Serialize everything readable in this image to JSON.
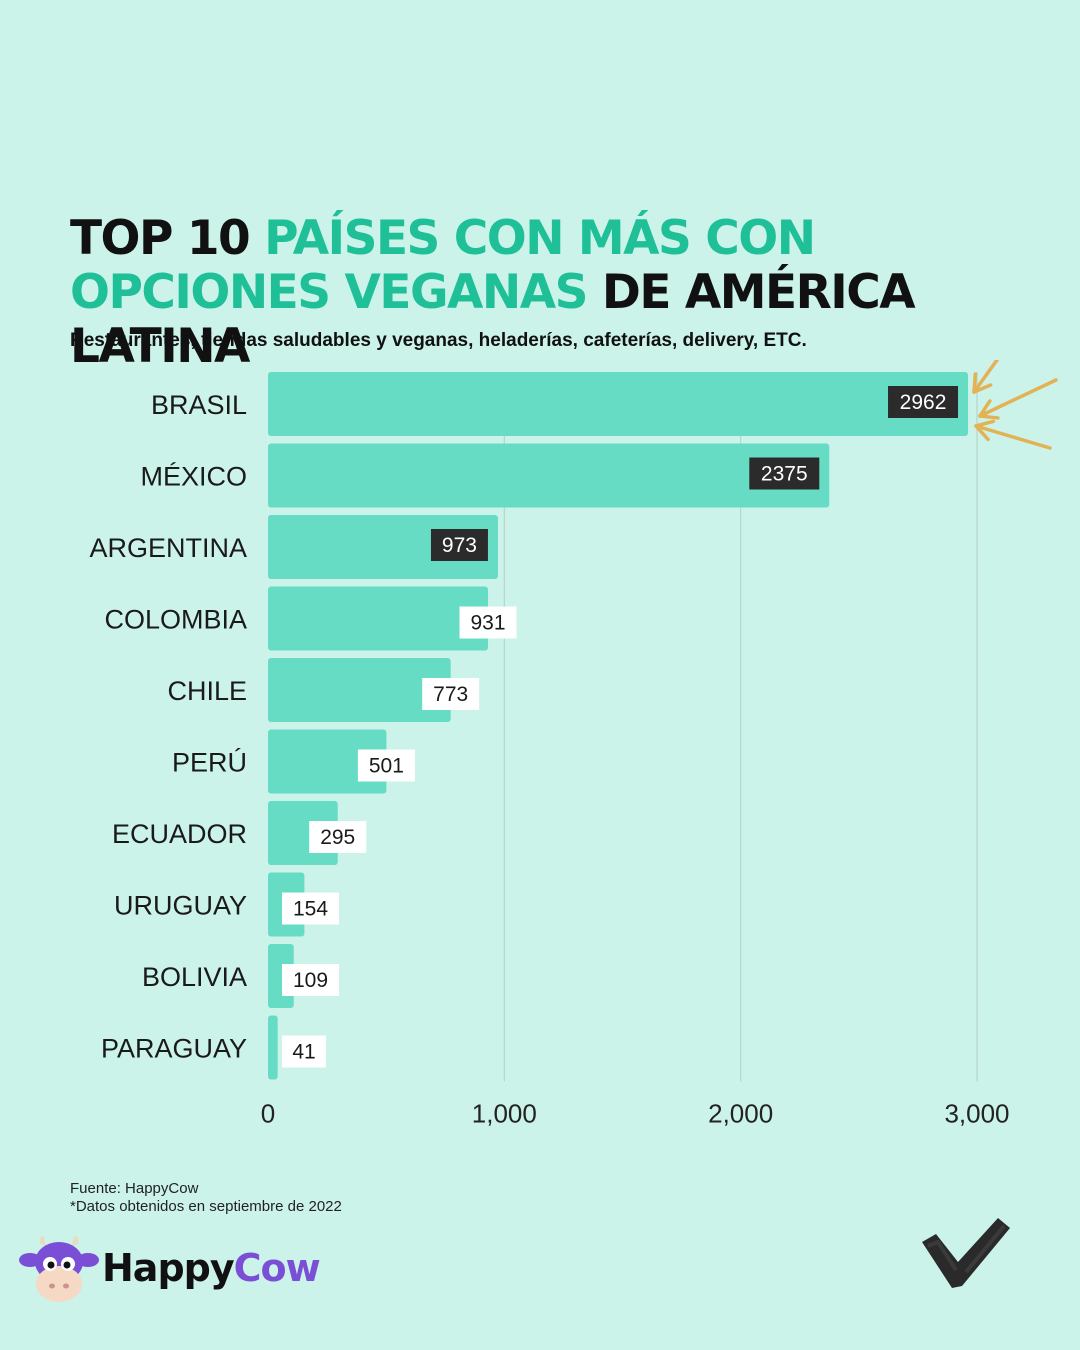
{
  "title": {
    "part1": "TOP 10 ",
    "part2": "PAÍSES CON MÁS CON OPCIONES VEGANAS",
    "part3": " DE AMÉRICA LATINA"
  },
  "subtitle": "Restaurantes, tiendas saludables y veganas, heladerías, cafeterías, delivery, ETC.",
  "chart_data": {
    "type": "bar",
    "orientation": "horizontal",
    "categories": [
      "BRASIL",
      "MÉXICO",
      "ARGENTINA",
      "COLOMBIA",
      "CHILE",
      "PERÚ",
      "ECUADOR",
      "URUGUAY",
      "BOLIVIA",
      "PARAGUAY"
    ],
    "values": [
      2962,
      2375,
      973,
      931,
      773,
      501,
      295,
      154,
      109,
      41
    ],
    "value_labels": [
      "2962",
      "2375",
      "973",
      "931",
      "773",
      "501",
      "295",
      "154",
      "109",
      "41"
    ],
    "xlim": [
      0,
      3000
    ],
    "xticks": [
      0,
      1000,
      2000,
      3000
    ],
    "xtick_labels": [
      "0",
      "1,000",
      "2,000",
      "3,000"
    ],
    "grid": "vertical",
    "bar_color": "#66dcc5",
    "dark_label_count": 3,
    "annotation": "arrows-pointing-at-brasil"
  },
  "footer": {
    "source": "Fuente: HappyCow",
    "note": "*Datos obtenidos en septiembre de 2022"
  },
  "brand": {
    "name_part1": "Happy",
    "name_part2": "Cow",
    "logo_icon": "cow-face-icon",
    "check_icon": "check-mark-icon"
  },
  "colors": {
    "background": "#cbf3ea",
    "title_accent": "#1fbf97",
    "bar": "#66dcc5",
    "arrow": "#e3b255",
    "brand_purple": "#7a4fd6"
  }
}
